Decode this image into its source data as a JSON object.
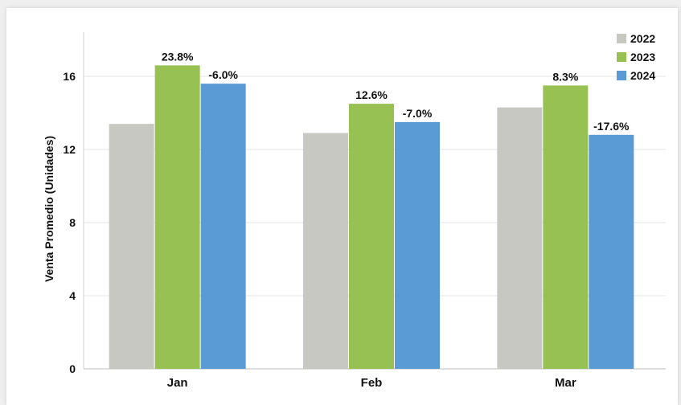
{
  "chart_data": {
    "type": "bar",
    "title": "",
    "xlabel": "",
    "ylabel": "Venta Promedio (Unidades)",
    "ylim": [
      0,
      18
    ],
    "yticks": [
      0,
      4,
      8,
      12,
      16
    ],
    "grid": true,
    "legend_position": "top-right",
    "categories": [
      "Jan",
      "Feb",
      "Mar"
    ],
    "series": [
      {
        "name": "2022",
        "color": "#c8c8c3",
        "values": [
          13.4,
          12.9,
          14.3
        ],
        "labels": [
          "",
          "",
          ""
        ]
      },
      {
        "name": "2023",
        "color": "#97c152",
        "values": [
          16.6,
          14.5,
          15.5
        ],
        "labels": [
          "23.8%",
          "12.6%",
          "8.3%"
        ]
      },
      {
        "name": "2024",
        "color": "#5b9bd5",
        "values": [
          15.6,
          13.5,
          12.8
        ],
        "labels": [
          "-6.0%",
          "-7.0%",
          "-17.6%"
        ]
      }
    ]
  }
}
